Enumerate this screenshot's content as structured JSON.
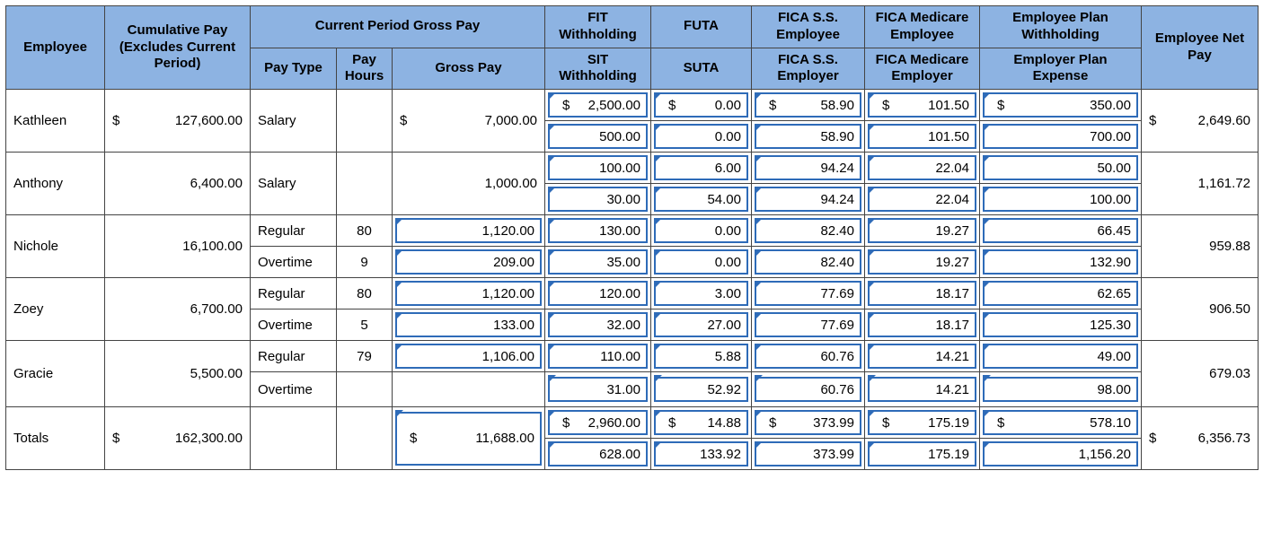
{
  "headers": {
    "employee": "Employee",
    "cumulative": "Cumulative Pay (Excludes Current Period)",
    "current_group": "Current Period Gross Pay",
    "pay_type": "Pay Type",
    "pay_hours": "Pay Hours",
    "gross_pay": "Gross Pay",
    "fit": "FIT Withholding",
    "sit": "SIT Withholding",
    "futa": "FUTA",
    "suta": "SUTA",
    "fica_ss_e": "FICA S.S. Employee",
    "fica_ss_r": "FICA S.S. Employer",
    "fica_med_e": "FICA Medicare Employee",
    "fica_med_r": "FICA Medicare Employer",
    "emp_plan_w": "Employee Plan Withholding",
    "emp_plan_x": "Employer Plan Expense",
    "net_pay": "Employee Net Pay"
  },
  "rows": [
    {
      "name": "Kathleen",
      "cum_sym": "$",
      "cum_val": "127,600.00",
      "lines": [
        {
          "pay_type": "Salary",
          "pay_hours": "",
          "gp_sym": "$",
          "gp_val": "7,000.00",
          "gp_span": 2,
          "wh": {
            "sym": "$",
            "val": "2,500.00"
          },
          "fu": {
            "sym": "$",
            "val": "0.00"
          },
          "fs": {
            "sym": "$",
            "val": "58.90"
          },
          "fm": {
            "sym": "$",
            "val": "101.50"
          },
          "ep": {
            "sym": "$",
            "val": "350.00"
          }
        },
        {
          "wh": {
            "sym": "",
            "val": "500.00"
          },
          "fu": {
            "sym": "",
            "val": "0.00"
          },
          "fs": {
            "sym": "",
            "val": "58.90"
          },
          "fm": {
            "sym": "",
            "val": "101.50"
          },
          "ep": {
            "sym": "",
            "val": "700.00"
          }
        }
      ],
      "np_sym": "$",
      "np_val": "2,649.60"
    },
    {
      "name": "Anthony",
      "cum_sym": "",
      "cum_val": "6,400.00",
      "lines": [
        {
          "pay_type": "Salary",
          "pay_hours": "",
          "gp_sym": "",
          "gp_val": "1,000.00",
          "gp_span": 2,
          "gp_plain": true,
          "wh": {
            "sym": "",
            "val": "100.00"
          },
          "fu": {
            "sym": "",
            "val": "6.00"
          },
          "fs": {
            "sym": "",
            "val": "94.24"
          },
          "fm": {
            "sym": "",
            "val": "22.04"
          },
          "ep": {
            "sym": "",
            "val": "50.00"
          }
        },
        {
          "wh": {
            "sym": "",
            "val": "30.00"
          },
          "fu": {
            "sym": "",
            "val": "54.00"
          },
          "fs": {
            "sym": "",
            "val": "94.24"
          },
          "fm": {
            "sym": "",
            "val": "22.04"
          },
          "ep": {
            "sym": "",
            "val": "100.00"
          }
        }
      ],
      "np_sym": "",
      "np_val": "1,161.72"
    },
    {
      "name": "Nichole",
      "cum_sym": "",
      "cum_val": "16,100.00",
      "lines": [
        {
          "pay_type": "Regular",
          "pay_hours": "80",
          "gp_sym": "",
          "gp_val": "1,120.00",
          "wh": {
            "sym": "",
            "val": "130.00"
          },
          "fu": {
            "sym": "",
            "val": "0.00"
          },
          "fs": {
            "sym": "",
            "val": "82.40"
          },
          "fm": {
            "sym": "",
            "val": "19.27"
          },
          "ep": {
            "sym": "",
            "val": "66.45"
          }
        },
        {
          "pay_type": "Overtime",
          "pay_hours": "9",
          "gp_sym": "",
          "gp_val": "209.00",
          "wh": {
            "sym": "",
            "val": "35.00"
          },
          "fu": {
            "sym": "",
            "val": "0.00"
          },
          "fs": {
            "sym": "",
            "val": "82.40"
          },
          "fm": {
            "sym": "",
            "val": "19.27"
          },
          "ep": {
            "sym": "",
            "val": "132.90"
          }
        }
      ],
      "np_sym": "",
      "np_val": "959.88"
    },
    {
      "name": "Zoey",
      "cum_sym": "",
      "cum_val": "6,700.00",
      "lines": [
        {
          "pay_type": "Regular",
          "pay_hours": "80",
          "gp_sym": "",
          "gp_val": "1,120.00",
          "wh": {
            "sym": "",
            "val": "120.00"
          },
          "fu": {
            "sym": "",
            "val": "3.00"
          },
          "fs": {
            "sym": "",
            "val": "77.69"
          },
          "fm": {
            "sym": "",
            "val": "18.17"
          },
          "ep": {
            "sym": "",
            "val": "62.65"
          }
        },
        {
          "pay_type": "Overtime",
          "pay_hours": "5",
          "gp_sym": "",
          "gp_val": "133.00",
          "wh": {
            "sym": "",
            "val": "32.00"
          },
          "fu": {
            "sym": "",
            "val": "27.00"
          },
          "fs": {
            "sym": "",
            "val": "77.69"
          },
          "fm": {
            "sym": "",
            "val": "18.17"
          },
          "ep": {
            "sym": "",
            "val": "125.30"
          }
        }
      ],
      "np_sym": "",
      "np_val": "906.50"
    },
    {
      "name": "Gracie",
      "cum_sym": "",
      "cum_val": "5,500.00",
      "lines": [
        {
          "pay_type": "Regular",
          "pay_hours": "79",
          "gp_sym": "",
          "gp_val": "1,106.00",
          "wh": {
            "sym": "",
            "val": "110.00"
          },
          "fu": {
            "sym": "",
            "val": "5.88"
          },
          "fs": {
            "sym": "",
            "val": "60.76"
          },
          "fm": {
            "sym": "",
            "val": "14.21"
          },
          "ep": {
            "sym": "",
            "val": "49.00"
          }
        },
        {
          "pay_type": "Overtime",
          "pay_hours": "",
          "gp_blank": true,
          "wh": {
            "sym": "",
            "val": "31.00"
          },
          "fu": {
            "sym": "",
            "val": "52.92"
          },
          "fs": {
            "sym": "",
            "val": "60.76"
          },
          "fm": {
            "sym": "",
            "val": "14.21"
          },
          "ep": {
            "sym": "",
            "val": "98.00"
          }
        }
      ],
      "np_sym": "",
      "np_val": "679.03"
    }
  ],
  "totals": {
    "name": "Totals",
    "cum_sym": "$",
    "cum_val": "162,300.00",
    "gp_sym": "$",
    "gp_val": "11,688.00",
    "lines": [
      {
        "wh": {
          "sym": "$",
          "val": "2,960.00"
        },
        "fu": {
          "sym": "$",
          "val": "14.88"
        },
        "fs": {
          "sym": "$",
          "val": "373.99"
        },
        "fm": {
          "sym": "$",
          "val": "175.19"
        },
        "ep": {
          "sym": "$",
          "val": "578.10"
        }
      },
      {
        "wh": {
          "sym": "",
          "val": "628.00"
        },
        "fu": {
          "sym": "",
          "val": "133.92"
        },
        "fs": {
          "sym": "",
          "val": "373.99"
        },
        "fm": {
          "sym": "",
          "val": "175.19"
        },
        "ep": {
          "sym": "",
          "val": "1,156.20"
        }
      }
    ],
    "np_sym": "$",
    "np_val": "6,356.73"
  },
  "style": {
    "header_bg": "#8db3e2",
    "cell_border": "#444444",
    "input_border": "#2e6bb8",
    "font_family": "Arial",
    "font_size_pt": 11
  }
}
